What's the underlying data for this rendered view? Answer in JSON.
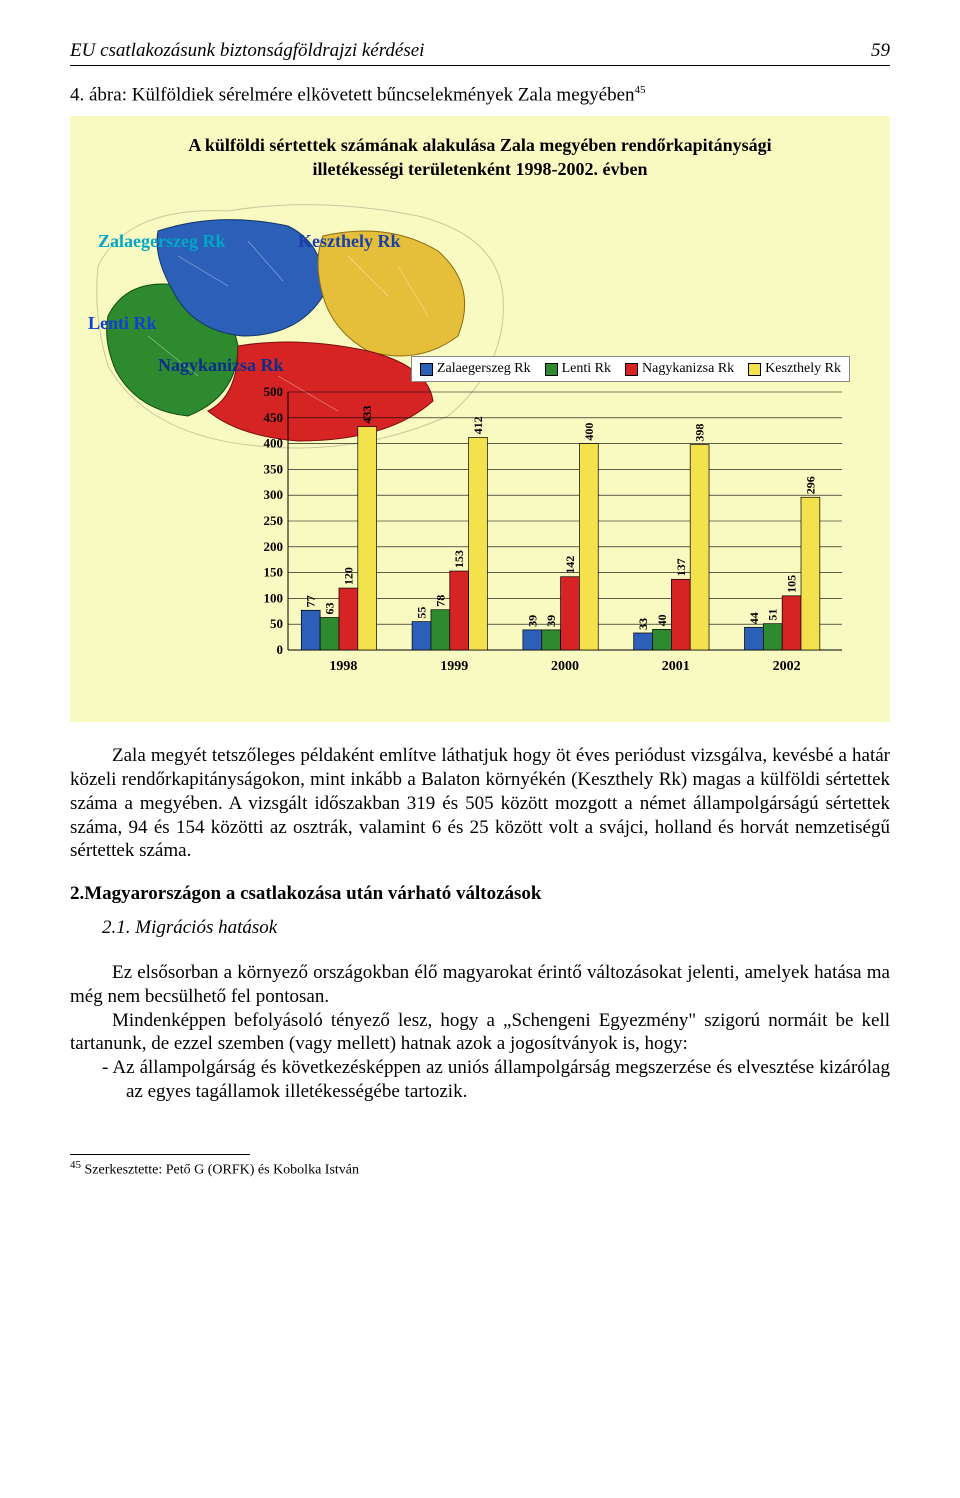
{
  "header": {
    "title": "EU csatlakozásunk biztonságföldrajzi kérdései",
    "page_number": "59"
  },
  "caption": {
    "num": "4. ábra:",
    "text": "Külföldiek sérelmére elkövetett bűncselekmények Zala megyében",
    "sup": "45"
  },
  "figure": {
    "title_l1": "A külföldi sértettek számának alakulása Zala megyében rendőrkapitánysági",
    "title_l2": "illetékességi területenként 1998-2002. évben",
    "regions": {
      "zalaegerszeg": {
        "label": "Zalaegerszeg Rk",
        "color": "#2b5fb8"
      },
      "keszthely": {
        "label": "Keszthely Rk",
        "color": "#e6bf3a"
      },
      "lenti": {
        "label": "Lenti Rk",
        "color": "#2e8a2e"
      },
      "nagykanizsa": {
        "label": "Nagykanizsa Rk",
        "color": "#d62424"
      }
    }
  },
  "chart": {
    "type": "grouped-bar",
    "background": "#f9fac1",
    "y_axis": {
      "min": 0,
      "max": 500,
      "step": 50,
      "ticks": [
        0,
        50,
        100,
        150,
        200,
        250,
        300,
        350,
        400,
        450,
        500
      ],
      "label_fontsize": 13
    },
    "x_categories": [
      "1998",
      "1999",
      "2000",
      "2001",
      "2002"
    ],
    "series": [
      {
        "name": "Zalaegerszeg Rk",
        "color": "#2b5fb8"
      },
      {
        "name": "Lenti Rk",
        "color": "#2e8a2e"
      },
      {
        "name": "Nagykanizsa Rk",
        "color": "#d62424"
      },
      {
        "name": "Keszthely Rk",
        "color": "#f4e24d"
      }
    ],
    "values": {
      "1998": [
        77,
        63,
        120,
        433
      ],
      "1999": [
        55,
        78,
        153,
        412
      ],
      "2000": [
        39,
        39,
        142,
        400
      ],
      "2001": [
        33,
        40,
        137,
        398
      ],
      "2002": [
        44,
        51,
        105,
        296
      ]
    },
    "bar_border": "#000000",
    "gridline_color": "#000000"
  },
  "body": {
    "p1": "Zala megyét tetszőleges példaként említve láthatjuk hogy  öt éves periódust vizsgálva, kevésbé a határ közeli rendőrkapitányságokon, mint inkább a Balaton környékén (Keszthely Rk) magas a külföldi sértettek száma a megyében. A vizsgált időszakban 319 és 505 között mozgott a német állampolgárságú sértettek száma, 94 és 154 közötti az osztrák, valamint 6 és 25 között volt a svájci, holland és horvát nemzetiségű sértettek száma.",
    "h2": "2.Magyarországon a  csatlakozása után várható változások",
    "h3": "2.1. Migrációs hatások",
    "p2": "Ez elsősorban a környező országokban élő magyarokat érintő változásokat jelenti, amelyek hatása ma még nem becsülhető fel pontosan.",
    "p3": "Mindenképpen befolyásoló tényező lesz, hogy a „Schengeni Egyezmény\" szigorú normáit be kell tartanunk, de ezzel szemben (vagy mellett) hatnak azok a jogosítványok is, hogy:",
    "b1": "-   Az állampolgárság és következésképpen az uniós állampolgárság megszerzése és elvesztése kizárólag az egyes tagállamok illetékességébe tartozik."
  },
  "footnote": {
    "sup": "45",
    "text": " Szerkesztette: Pető G (ORFK) és Kobolka István"
  }
}
